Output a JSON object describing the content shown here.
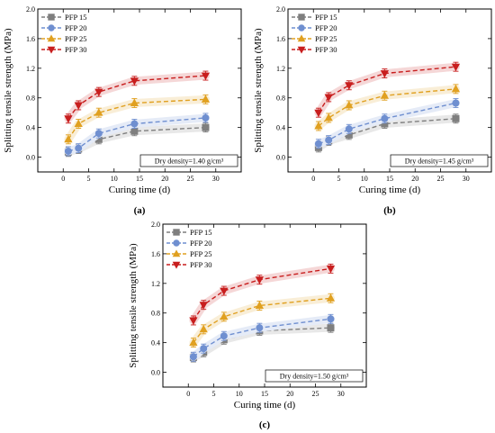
{
  "chart_data": [
    {
      "type": "line",
      "panel_label": "(a)",
      "xlabel": "Curing time (d)",
      "ylabel": "Splitting tensile strength (MPa)",
      "xlim": [
        -5,
        35
      ],
      "ylim": [
        -0.2,
        2.0
      ],
      "x_ticks": [
        "0",
        "5",
        "10",
        "15",
        "20",
        "25",
        "30"
      ],
      "y_ticks": [
        "0.0",
        "0.4",
        "0.8",
        "1.2",
        "1.6",
        "2.0"
      ],
      "annotation": "Dry density=1.40 g/cm³",
      "legend_position": "top-left",
      "x": [
        1,
        3,
        7,
        14,
        28
      ],
      "series": [
        {
          "name": "PFP 15",
          "values": [
            0.07,
            0.11,
            0.24,
            0.35,
            0.4
          ],
          "color": "#7f7f7f",
          "marker": "square"
        },
        {
          "name": "PFP 20",
          "values": [
            0.08,
            0.12,
            0.32,
            0.45,
            0.53
          ],
          "color": "#6f8fd0",
          "marker": "circle"
        },
        {
          "name": "PFP 25",
          "values": [
            0.24,
            0.45,
            0.6,
            0.73,
            0.78
          ],
          "color": "#e0a020",
          "marker": "triangle-up"
        },
        {
          "name": "PFP 30",
          "values": [
            0.52,
            0.7,
            0.88,
            1.03,
            1.1
          ],
          "color": "#c81e1e",
          "marker": "triangle-down"
        }
      ]
    },
    {
      "type": "line",
      "panel_label": "(b)",
      "xlabel": "Curing time (d)",
      "ylabel": "Splitting tensile strength (MPa)",
      "xlim": [
        -5,
        35
      ],
      "ylim": [
        -0.2,
        2.0
      ],
      "x_ticks": [
        "0",
        "5",
        "10",
        "15",
        "20",
        "25",
        "30"
      ],
      "y_ticks": [
        "0.0",
        "0.4",
        "0.8",
        "1.2",
        "1.6",
        "2.0"
      ],
      "annotation": "Dry density=1.45 g/cm³",
      "legend_position": "top-left",
      "x": [
        1,
        3,
        7,
        14,
        28
      ],
      "series": [
        {
          "name": "PFP 15",
          "values": [
            0.13,
            0.22,
            0.3,
            0.45,
            0.52
          ],
          "color": "#7f7f7f",
          "marker": "square"
        },
        {
          "name": "PFP 20",
          "values": [
            0.18,
            0.23,
            0.38,
            0.52,
            0.73
          ],
          "color": "#6f8fd0",
          "marker": "circle"
        },
        {
          "name": "PFP 25",
          "values": [
            0.42,
            0.53,
            0.7,
            0.83,
            0.92
          ],
          "color": "#e0a020",
          "marker": "triangle-up"
        },
        {
          "name": "PFP 30",
          "values": [
            0.6,
            0.81,
            0.97,
            1.13,
            1.22
          ],
          "color": "#c81e1e",
          "marker": "triangle-down"
        }
      ]
    },
    {
      "type": "line",
      "panel_label": "(c)",
      "xlabel": "Curing time (d)",
      "ylabel": "Splitting tensile strength (MPa)",
      "xlim": [
        -5,
        35
      ],
      "ylim": [
        -0.2,
        2.0
      ],
      "x_ticks": [
        "0",
        "5",
        "10",
        "15",
        "20",
        "25",
        "30"
      ],
      "y_ticks": [
        "0.0",
        "0.4",
        "0.8",
        "1.2",
        "1.6",
        "2.0"
      ],
      "annotation": "Dry density=1.50 g/cm³",
      "legend_position": "top-left",
      "x": [
        1,
        3,
        7,
        14,
        28
      ],
      "series": [
        {
          "name": "PFP 15",
          "values": [
            0.2,
            0.27,
            0.44,
            0.56,
            0.6
          ],
          "color": "#7f7f7f",
          "marker": "square"
        },
        {
          "name": "PFP 20",
          "values": [
            0.21,
            0.32,
            0.49,
            0.6,
            0.72
          ],
          "color": "#6f8fd0",
          "marker": "circle"
        },
        {
          "name": "PFP 25",
          "values": [
            0.4,
            0.58,
            0.75,
            0.9,
            1.0
          ],
          "color": "#e0a020",
          "marker": "triangle-up"
        },
        {
          "name": "PFP 30",
          "values": [
            0.7,
            0.91,
            1.1,
            1.25,
            1.4
          ],
          "color": "#c81e1e",
          "marker": "triangle-down"
        }
      ]
    }
  ]
}
